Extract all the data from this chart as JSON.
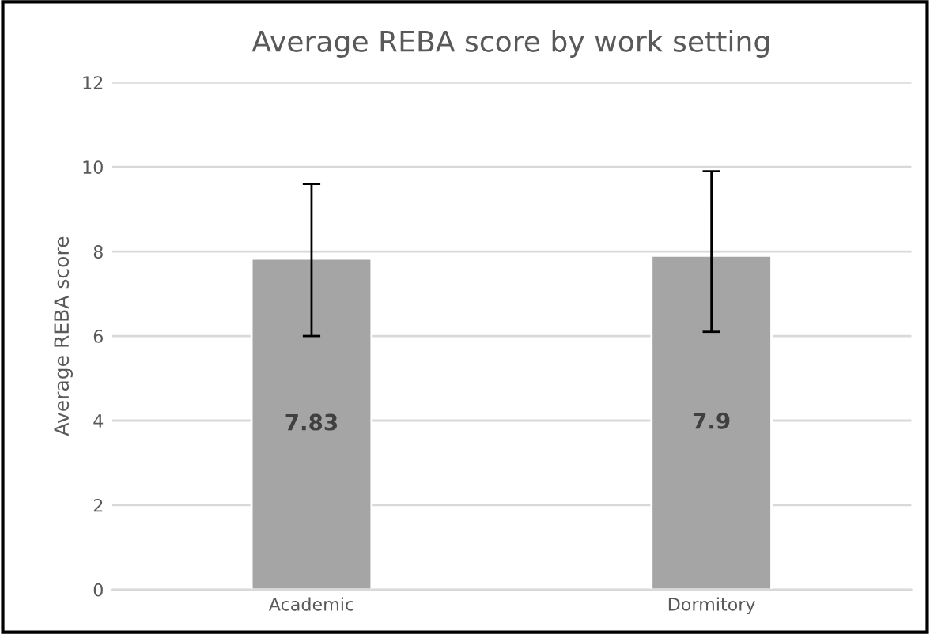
{
  "chart_data": {
    "type": "bar",
    "title": "Average REBA score by work setting",
    "ylabel": "Average REBA score",
    "categories": [
      "Academic",
      "Dormitory"
    ],
    "values": [
      7.83,
      7.9
    ],
    "color": "#a5a5a5",
    "errors": [
      [
        6.0,
        9.6
      ],
      [
        6.1,
        9.9
      ]
    ],
    "ylim": [
      0,
      12
    ],
    "yticks": [
      0,
      2,
      4,
      6,
      8,
      10,
      12
    ],
    "grid": "y",
    "data_labels": true
  }
}
